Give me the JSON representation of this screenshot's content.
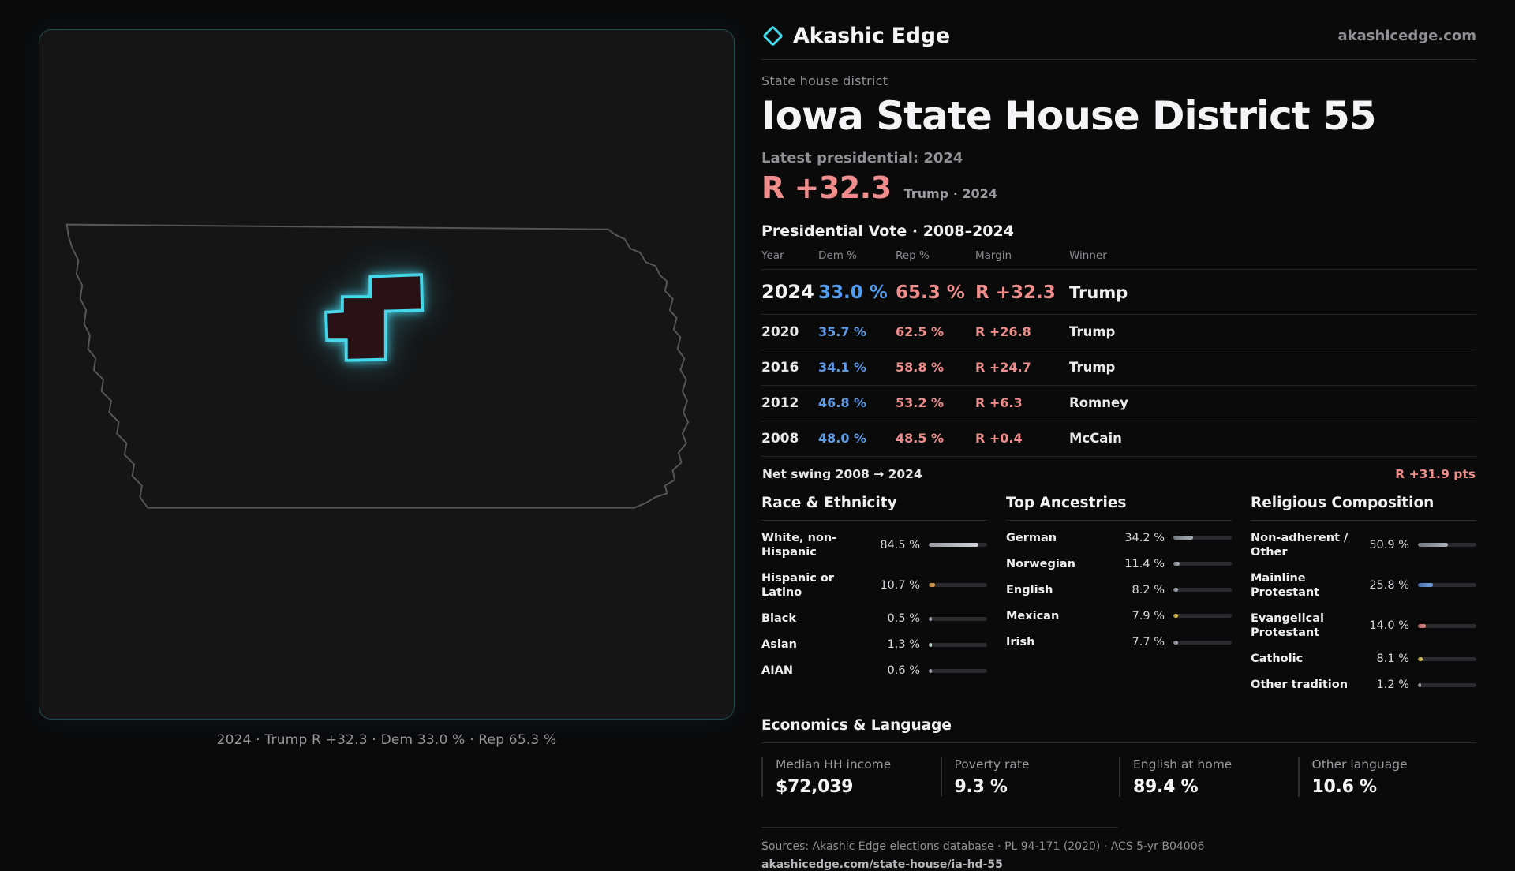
{
  "brand": {
    "name": "Akashic Edge",
    "domain": "akashicedge.com",
    "accent": "#45d8ea"
  },
  "colors": {
    "dem_blue": "#5f9ce8",
    "rep_red": "#ef8d8d",
    "background": "#0a0a0b",
    "panel": "#151516"
  },
  "district": {
    "kicker": "State house district",
    "title": "Iowa State House District 55"
  },
  "latest": {
    "label": "Latest presidential: 2024",
    "value": "R +32.3",
    "context": "Trump · 2024"
  },
  "vote": {
    "title": "Presidential Vote · 2008–2024",
    "columns": [
      "Year",
      "Dem %",
      "Rep %",
      "Margin",
      "Winner"
    ],
    "rows": [
      {
        "year": "2024",
        "dem": "33.0 %",
        "rep": "65.3 %",
        "margin": "R +32.3",
        "winner": "Trump"
      },
      {
        "year": "2020",
        "dem": "35.7 %",
        "rep": "62.5 %",
        "margin": "R +26.8",
        "winner": "Trump"
      },
      {
        "year": "2016",
        "dem": "34.1 %",
        "rep": "58.8 %",
        "margin": "R +24.7",
        "winner": "Trump"
      },
      {
        "year": "2012",
        "dem": "46.8 %",
        "rep": "53.2 %",
        "margin": "R +6.3",
        "winner": "Romney"
      },
      {
        "year": "2008",
        "dem": "48.0 %",
        "rep": "48.5 %",
        "margin": "R +0.4",
        "winner": "McCain"
      }
    ]
  },
  "net_swing": {
    "label": "Net swing 2008 → 2024",
    "value": "R +31.9 pts"
  },
  "demographics": [
    {
      "title": "Race & Ethnicity",
      "items": [
        {
          "label": "White, non-Hispanic",
          "value": "84.5 %",
          "pct": 84.5,
          "color": "#c9ccd4"
        },
        {
          "label": "Hispanic or Latino",
          "value": "10.7 %",
          "pct": 10.7,
          "color": "#e09c3c"
        },
        {
          "label": "Black",
          "value": "0.5 %",
          "pct": 0.5,
          "color": "#9aa0aa"
        },
        {
          "label": "Asian",
          "value": "1.3 %",
          "pct": 1.3,
          "color": "#bfe3d8"
        },
        {
          "label": "AIAN",
          "value": "0.6 %",
          "pct": 0.6,
          "color": "#9aa0aa"
        }
      ]
    },
    {
      "title": "Top Ancestries",
      "items": [
        {
          "label": "German",
          "value": "34.2 %",
          "pct": 34.2,
          "color": "#9aa0aa"
        },
        {
          "label": "Norwegian",
          "value": "11.4 %",
          "pct": 11.4,
          "color": "#9aa0aa"
        },
        {
          "label": "English",
          "value": "8.2 %",
          "pct": 8.2,
          "color": "#9aa0aa"
        },
        {
          "label": "Mexican",
          "value": "7.9 %",
          "pct": 7.9,
          "color": "#e0c23c"
        },
        {
          "label": "Irish",
          "value": "7.7 %",
          "pct": 7.7,
          "color": "#9aa0aa"
        }
      ]
    },
    {
      "title": "Religious Composition",
      "items": [
        {
          "label": "Non-adherent / Other",
          "value": "50.9 %",
          "pct": 50.9,
          "color": "#9aa0aa"
        },
        {
          "label": "Mainline Protestant",
          "value": "25.8 %",
          "pct": 25.8,
          "color": "#5b8fe0"
        },
        {
          "label": "Evangelical Protestant",
          "value": "14.0 %",
          "pct": 14.0,
          "color": "#e07878"
        },
        {
          "label": "Catholic",
          "value": "8.1 %",
          "pct": 8.1,
          "color": "#e0c23c"
        },
        {
          "label": "Other tradition",
          "value": "1.2 %",
          "pct": 1.2,
          "color": "#9aa0aa"
        }
      ]
    }
  ],
  "economics": {
    "title": "Economics & Language",
    "stats": [
      {
        "label": "Median HH income",
        "value": "$72,039"
      },
      {
        "label": "Poverty rate",
        "value": "9.3 %"
      },
      {
        "label": "English at home",
        "value": "89.4 %"
      },
      {
        "label": "Other language",
        "value": "10.6 %"
      }
    ]
  },
  "footer": {
    "sources": "Sources: Akashic Edge elections database · PL 94-171 (2020) · ACS 5-yr B04006",
    "permalink": "akashicedge.com/state-house/ia-hd-55"
  },
  "map": {
    "caption": "2024 · Trump R +32.3 · Dem 33.0 % · Rep 65.3 %"
  },
  "chart_data": [
    {
      "type": "table",
      "title": "Presidential Vote · 2008–2024",
      "columns": [
        "Year",
        "Dem %",
        "Rep %",
        "Margin",
        "Winner"
      ],
      "rows": [
        [
          2024,
          33.0,
          65.3,
          "R +32.3",
          "Trump"
        ],
        [
          2020,
          35.7,
          62.5,
          "R +26.8",
          "Trump"
        ],
        [
          2016,
          34.1,
          58.8,
          "R +24.7",
          "Trump"
        ],
        [
          2012,
          46.8,
          53.2,
          "R +6.3",
          "Romney"
        ],
        [
          2008,
          48.0,
          48.5,
          "R +0.4",
          "McCain"
        ]
      ],
      "annotations": [
        "Net swing 2008 → 2024: R +31.9 pts",
        "Latest presidential 2024: R +32.3 (Trump)"
      ]
    },
    {
      "type": "bar",
      "title": "Race & Ethnicity",
      "categories": [
        "White, non-Hispanic",
        "Hispanic or Latino",
        "Black",
        "Asian",
        "AIAN"
      ],
      "values": [
        84.5,
        10.7,
        0.5,
        1.3,
        0.6
      ],
      "xlabel": "",
      "ylabel": "Percent",
      "xlim": [
        0,
        100
      ]
    },
    {
      "type": "bar",
      "title": "Top Ancestries",
      "categories": [
        "German",
        "Norwegian",
        "English",
        "Mexican",
        "Irish"
      ],
      "values": [
        34.2,
        11.4,
        8.2,
        7.9,
        7.7
      ],
      "xlabel": "",
      "ylabel": "Percent",
      "xlim": [
        0,
        100
      ]
    },
    {
      "type": "bar",
      "title": "Religious Composition",
      "categories": [
        "Non-adherent / Other",
        "Mainline Protestant",
        "Evangelical Protestant",
        "Catholic",
        "Other tradition"
      ],
      "values": [
        50.9,
        25.8,
        14.0,
        8.1,
        1.2
      ],
      "xlabel": "",
      "ylabel": "Percent",
      "xlim": [
        0,
        100
      ]
    }
  ]
}
